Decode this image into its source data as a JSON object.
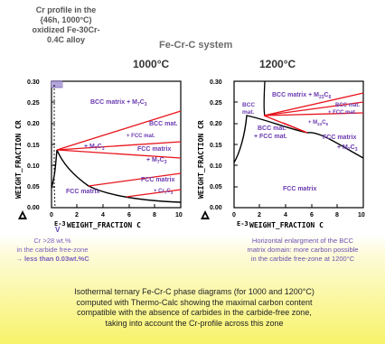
{
  "header": {
    "profile_title": "Cr profile in the {46h, 1000°C) oxidized Fe-30Cr-0.4C alloy",
    "system_title": "Fe-Cr-C system",
    "temp_left": "1000°C",
    "temp_right": "1200°C"
  },
  "notes": {
    "left_line1": "Cr >28 wt.%",
    "left_line2": "in the carbide free-zone",
    "left_line3": "→ less than 0.03wt.%C",
    "right_line1": "Horizontal enlargment of the BCC",
    "right_line2": "matrix domain: more carbon possible",
    "right_line3": "in the carbide free-zone at 1200°C"
  },
  "caption": {
    "line1": "Isothermal ternary Fe-Cr-C phase diagrams (for 1000 and 1200°C)",
    "line2": "computed with Thermo-Calc showing the maximal carbon content",
    "line3": "compatible with the absence of carbides in the carbide-free zone,",
    "line4": "taking into account the Cr-profile across this zone"
  },
  "colors": {
    "phase_boundary": "#000000",
    "tie_line": "#e8141c",
    "label": "#6a3ab0"
  },
  "chart_data": [
    {
      "type": "diagram",
      "title": "1000°C",
      "xlabel": "WEIGHT_FRACTION C",
      "x_exponent_label": "E-3",
      "ylabel": "WEIGHT_FRACTION CR",
      "xlim": [
        0,
        10
      ],
      "ylim": [
        0,
        0.3
      ],
      "x_ticks": [
        "0",
        "2",
        "4",
        "6",
        "8",
        "10"
      ],
      "y_ticks": [
        "0.00",
        "0.05",
        "0.10",
        "0.15",
        "0.20",
        "0.25",
        "0.30"
      ],
      "region_labels": [
        "BCC matrix + M7C3",
        "BCC mat.",
        "+ FCC mat.",
        "+ M7C3",
        "FCC matrix",
        "+ M7C3",
        "FCC matrix",
        "+ Cr7C3",
        "FCC matrix"
      ]
    },
    {
      "type": "diagram",
      "title": "1200°C",
      "xlabel": "WEIGHT_FRACTION C",
      "x_exponent_label": "E-3",
      "ylabel": "WEIGHT_FRACTION CR",
      "xlim": [
        0,
        10
      ],
      "ylim": [
        0,
        0.3
      ],
      "x_ticks": [
        "0",
        "2",
        "4",
        "6",
        "8",
        "10"
      ],
      "y_ticks": [
        "0.00",
        "0.05",
        "0.10",
        "0.15",
        "0.20",
        "0.25",
        "0.30"
      ],
      "region_labels": [
        "BCC matrix + M23C6",
        "BCC",
        "mat.",
        "BCC mat.",
        "+ FCC mat.",
        "+ M23C6",
        "BCC mat.",
        "+ FCC mat.",
        "FCC matrix",
        "+ M7C3",
        "FCC matrix"
      ]
    }
  ],
  "labels": {
    "l_bcc_m7c3": "BCC matrix + M",
    "l_m7c3_sub": "7",
    "l_c3": "C",
    "l_c3_sub": "3",
    "l_bccmat": "BCC mat.",
    "l_plusfcc": "+ FCC mat.",
    "l_plusm7c3": "+ M",
    "l_fccmatrix": "FCC matrix",
    "l_pluscr7c3": "+ Cr",
    "r_bcc_m23c6": "BCC matrix + M",
    "r_23_sub": "23",
    "r_c6": "C",
    "r_6_sub": "6",
    "r_bcc": "BCC",
    "r_mat": "mat.",
    "r_plusm23c6": "+ M",
    "r_fccmatrix": "FCC matrix",
    "r_bccmat": "BCC mat.",
    "r_plusfcc": "+ FCC mat.",
    "r_plusm7c3": "+ M",
    "tick_x": [
      "0",
      "2",
      "4",
      "6",
      "8",
      "10"
    ],
    "tick_y": [
      "0.30",
      "0.25",
      "0.20",
      "0.15",
      "0.10",
      "0.05",
      "0.00"
    ],
    "y_axis_title": "WEIGHT_FRACTION CR",
    "x_axis_title": "WEIGHT_FRACTION C",
    "e3": "E-3",
    "arrow_v": "V"
  }
}
